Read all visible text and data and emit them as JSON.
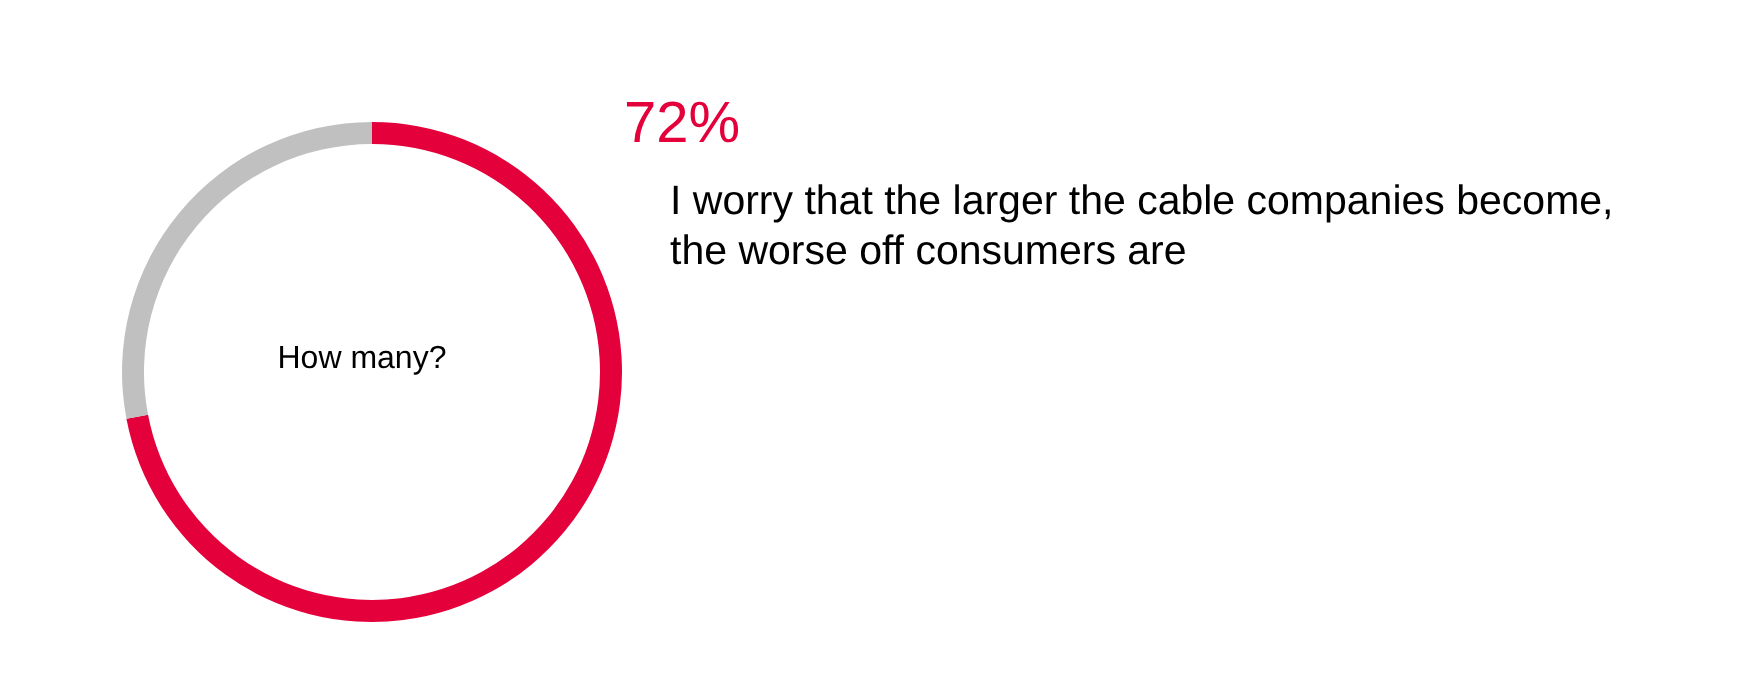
{
  "chart_data": {
    "type": "donut",
    "title": "How many?",
    "categories": [
      null,
      null
    ],
    "values": [
      72,
      28
    ],
    "colors": [
      "#e4003b",
      "#c0c0c0"
    ],
    "value_labels": [
      "72%",
      null
    ],
    "annotations": [
      "I worry that the larger the cable companies become, the worse off consumers are"
    ]
  }
}
